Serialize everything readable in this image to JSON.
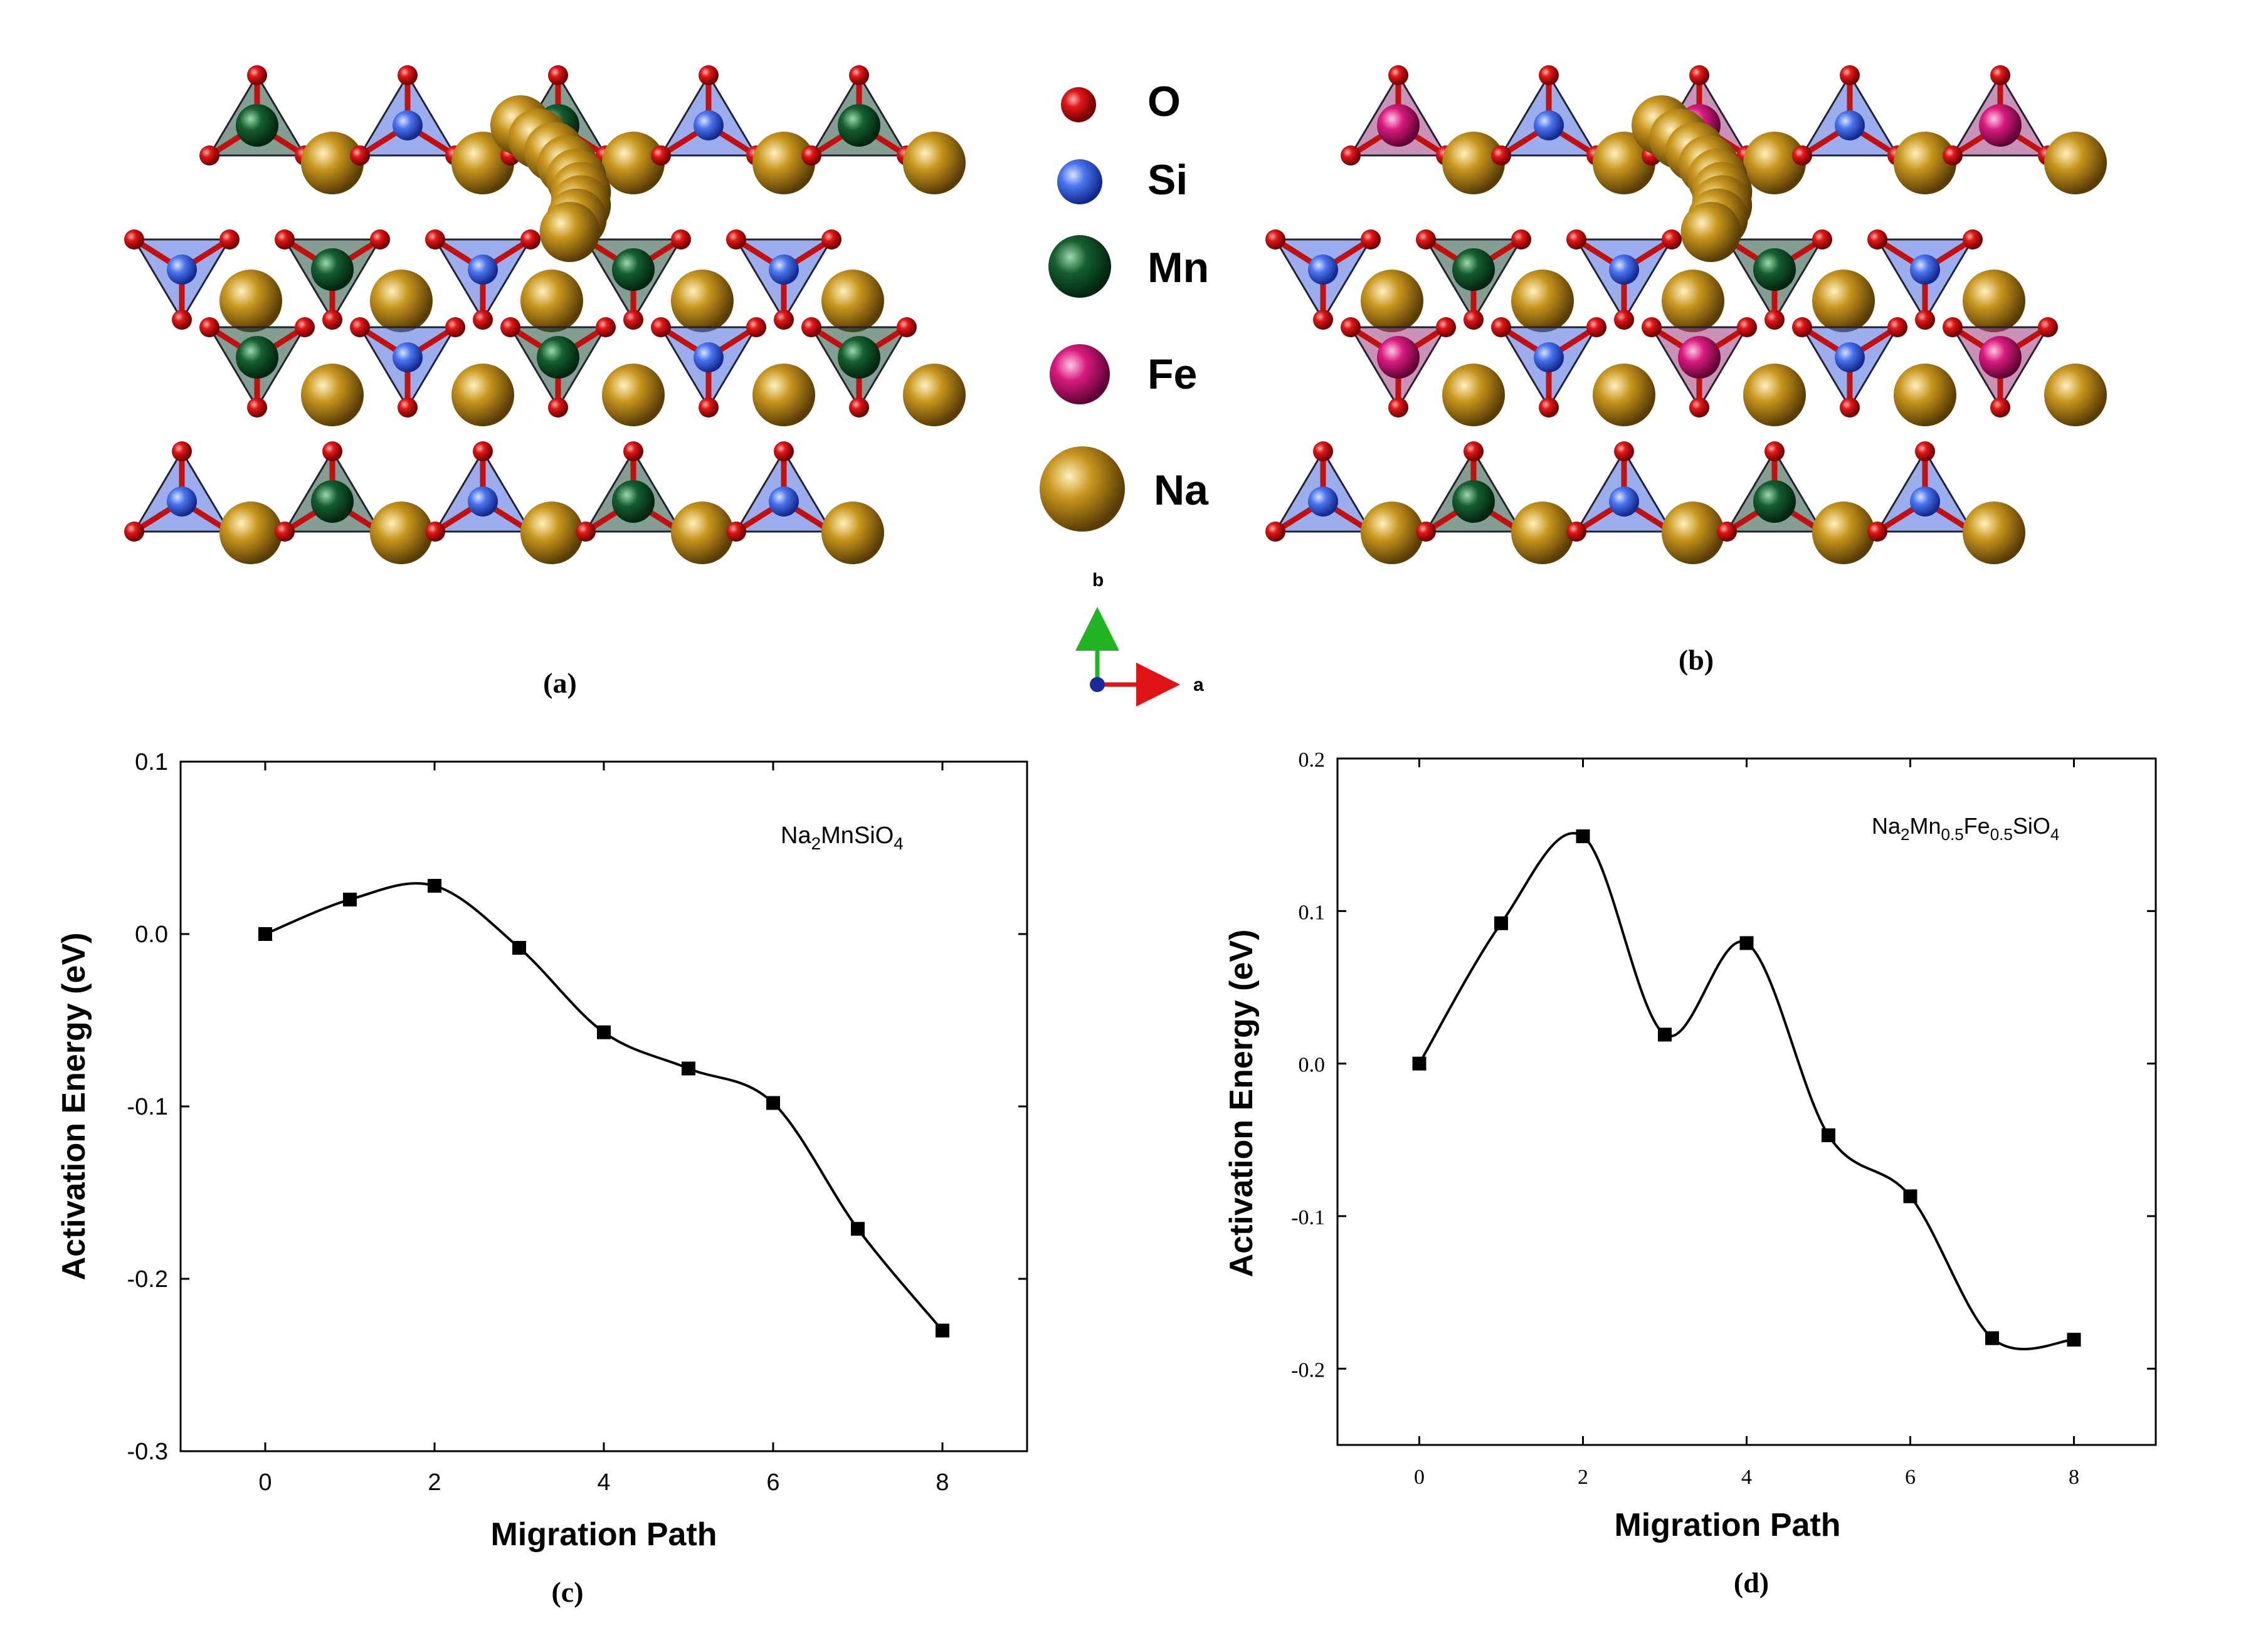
{
  "panels": {
    "a": {
      "label": "(a)"
    },
    "b": {
      "label": "(b)"
    },
    "c": {
      "label": "(c)"
    },
    "d": {
      "label": "(d)"
    }
  },
  "legend": {
    "items": [
      {
        "element": "O",
        "label": "O",
        "color": "#e0101a"
      },
      {
        "element": "Si",
        "label": "Si",
        "color": "#3f6ae8"
      },
      {
        "element": "Mn",
        "label": "Mn",
        "color": "#0f5a2a"
      },
      {
        "element": "Fe",
        "label": "Fe",
        "color": "#d81a7e"
      },
      {
        "element": "Na",
        "label": "Na",
        "color": "#c8961e"
      }
    ]
  },
  "axes_indicator": {
    "b_label": "b",
    "a_label": "a"
  },
  "chart_data": [
    {
      "type": "line",
      "panel": "c",
      "title": "Na2MnSiO4",
      "title_parts": {
        "base1": "Na",
        "sub1": "2",
        "base2": "MnSiO",
        "sub2": "4"
      },
      "xlabel": "Migration Path",
      "ylabel": "Activation Energy (eV)",
      "xlim": [
        -1,
        9
      ],
      "ylim": [
        -0.3,
        0.1
      ],
      "xticks": [
        0,
        2,
        4,
        6,
        8
      ],
      "xtick_labels": [
        "0",
        "2",
        "4",
        "6",
        "8"
      ],
      "yticks": [
        -0.3,
        -0.2,
        -0.1,
        0.0,
        0.1
      ],
      "ytick_labels": [
        "-0.3",
        "-0.2",
        "-0.1",
        "0.0",
        "0.1"
      ],
      "series": [
        {
          "name": "Na2MnSiO4",
          "x": [
            0,
            1,
            2,
            3,
            4,
            5,
            6,
            7,
            8
          ],
          "values": [
            0.0,
            0.02,
            0.028,
            -0.008,
            -0.057,
            -0.078,
            -0.098,
            -0.171,
            -0.23
          ],
          "color": "#000000",
          "marker": "square",
          "smooth": true
        }
      ]
    },
    {
      "type": "line",
      "panel": "d",
      "title": "Na2Mn0.5Fe0.5SiO4",
      "title_parts": {
        "base1": "Na",
        "sub1": "2",
        "base2": "Mn",
        "sub2": "0.5",
        "base3": "Fe",
        "sub3": "0.5",
        "base4": "SiO",
        "sub4": "4"
      },
      "xlabel": "Migration Path",
      "ylabel": "Activation Energy (eV)",
      "xlim": [
        -1,
        9
      ],
      "ylim": [
        -0.25,
        0.2
      ],
      "xticks": [
        0,
        2,
        4,
        6,
        8
      ],
      "xtick_labels": [
        "0",
        "2",
        "4",
        "6",
        "8"
      ],
      "yticks": [
        -0.2,
        -0.1,
        0.0,
        0.1,
        0.2
      ],
      "ytick_labels": [
        "-0.2",
        "-0.1",
        "0.0",
        "0.1",
        "0.2"
      ],
      "series": [
        {
          "name": "Na2Mn0.5Fe0.5SiO4",
          "x": [
            0,
            1,
            2,
            3,
            4,
            5,
            6,
            7,
            8
          ],
          "values": [
            0.0,
            0.092,
            0.149,
            0.019,
            0.079,
            -0.047,
            -0.087,
            -0.18,
            -0.181
          ],
          "color": "#000000",
          "marker": "square",
          "smooth": true
        }
      ]
    }
  ]
}
